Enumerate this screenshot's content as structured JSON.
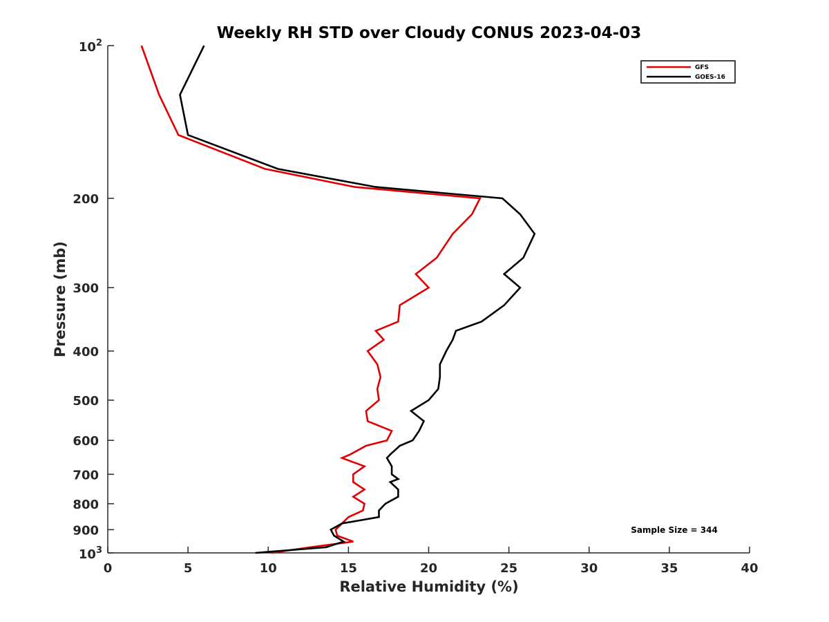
{
  "chart_data": {
    "type": "line",
    "title": "Weekly RH STD over Cloudy CONUS 2023-04-03",
    "xlabel": "Relative Humidity (%)",
    "ylabel": "Pressure (mb)",
    "xlim": [
      0,
      40
    ],
    "ylim": [
      100,
      1000
    ],
    "y_scale": "log",
    "y_reversed": true,
    "grid": false,
    "legend_position": "top-right",
    "x_ticks": [
      "0",
      "5",
      "10",
      "15",
      "20",
      "25",
      "30",
      "35",
      "40"
    ],
    "y_ticks": [
      {
        "value": 100,
        "base": "10",
        "exp": "2"
      },
      {
        "value": 200,
        "label": "200"
      },
      {
        "value": 300,
        "label": "300"
      },
      {
        "value": 400,
        "label": "400"
      },
      {
        "value": 500,
        "label": "500"
      },
      {
        "value": 600,
        "label": "600"
      },
      {
        "value": 700,
        "label": "700"
      },
      {
        "value": 800,
        "label": "800"
      },
      {
        "value": 900,
        "label": "900"
      },
      {
        "value": 1000,
        "base": "10",
        "exp": "3"
      }
    ],
    "series": [
      {
        "name": "GFS",
        "color": "#e00000",
        "points": [
          [
            2.1,
            100
          ],
          [
            3.2,
            125
          ],
          [
            4.4,
            150
          ],
          [
            9.8,
            175
          ],
          [
            15.4,
            190
          ],
          [
            23.2,
            200
          ],
          [
            22.7,
            215
          ],
          [
            21.5,
            235
          ],
          [
            20.5,
            262
          ],
          [
            19.2,
            282
          ],
          [
            20.0,
            300
          ],
          [
            18.2,
            325
          ],
          [
            18.1,
            350
          ],
          [
            16.7,
            365
          ],
          [
            17.2,
            380
          ],
          [
            16.2,
            400
          ],
          [
            16.8,
            425
          ],
          [
            17.0,
            450
          ],
          [
            16.8,
            475
          ],
          [
            16.9,
            500
          ],
          [
            16.1,
            525
          ],
          [
            16.2,
            550
          ],
          [
            17.7,
            575
          ],
          [
            17.4,
            600
          ],
          [
            16.1,
            615
          ],
          [
            15.1,
            640
          ],
          [
            14.6,
            650
          ],
          [
            16.0,
            675
          ],
          [
            15.3,
            700
          ],
          [
            15.3,
            725
          ],
          [
            16.0,
            750
          ],
          [
            15.3,
            775
          ],
          [
            16.0,
            800
          ],
          [
            15.9,
            825
          ],
          [
            15.0,
            850
          ],
          [
            14.6,
            875
          ],
          [
            14.2,
            900
          ],
          [
            14.3,
            925
          ],
          [
            15.3,
            950
          ],
          [
            12.6,
            975
          ],
          [
            10.2,
            1000
          ]
        ]
      },
      {
        "name": "GOES-16",
        "color": "#000000",
        "points": [
          [
            6.0,
            100
          ],
          [
            4.5,
            125
          ],
          [
            5.0,
            150
          ],
          [
            10.6,
            175
          ],
          [
            16.7,
            190
          ],
          [
            24.6,
            200
          ],
          [
            25.7,
            215
          ],
          [
            26.6,
            235
          ],
          [
            25.9,
            262
          ],
          [
            24.7,
            282
          ],
          [
            25.7,
            300
          ],
          [
            24.7,
            325
          ],
          [
            23.3,
            350
          ],
          [
            21.7,
            365
          ],
          [
            21.5,
            380
          ],
          [
            21.1,
            400
          ],
          [
            20.7,
            425
          ],
          [
            20.7,
            450
          ],
          [
            20.6,
            475
          ],
          [
            20.0,
            500
          ],
          [
            18.9,
            525
          ],
          [
            19.7,
            550
          ],
          [
            19.4,
            575
          ],
          [
            19.0,
            600
          ],
          [
            18.2,
            615
          ],
          [
            17.6,
            640
          ],
          [
            17.4,
            650
          ],
          [
            17.7,
            675
          ],
          [
            17.7,
            700
          ],
          [
            18.1,
            715
          ],
          [
            17.6,
            725
          ],
          [
            18.1,
            750
          ],
          [
            18.1,
            775
          ],
          [
            17.3,
            800
          ],
          [
            16.9,
            825
          ],
          [
            16.9,
            850
          ],
          [
            14.6,
            875
          ],
          [
            13.9,
            900
          ],
          [
            14.1,
            925
          ],
          [
            14.7,
            950
          ],
          [
            13.6,
            975
          ],
          [
            9.2,
            1000
          ]
        ]
      }
    ],
    "annotations": [
      "Sample Size = 344"
    ]
  }
}
